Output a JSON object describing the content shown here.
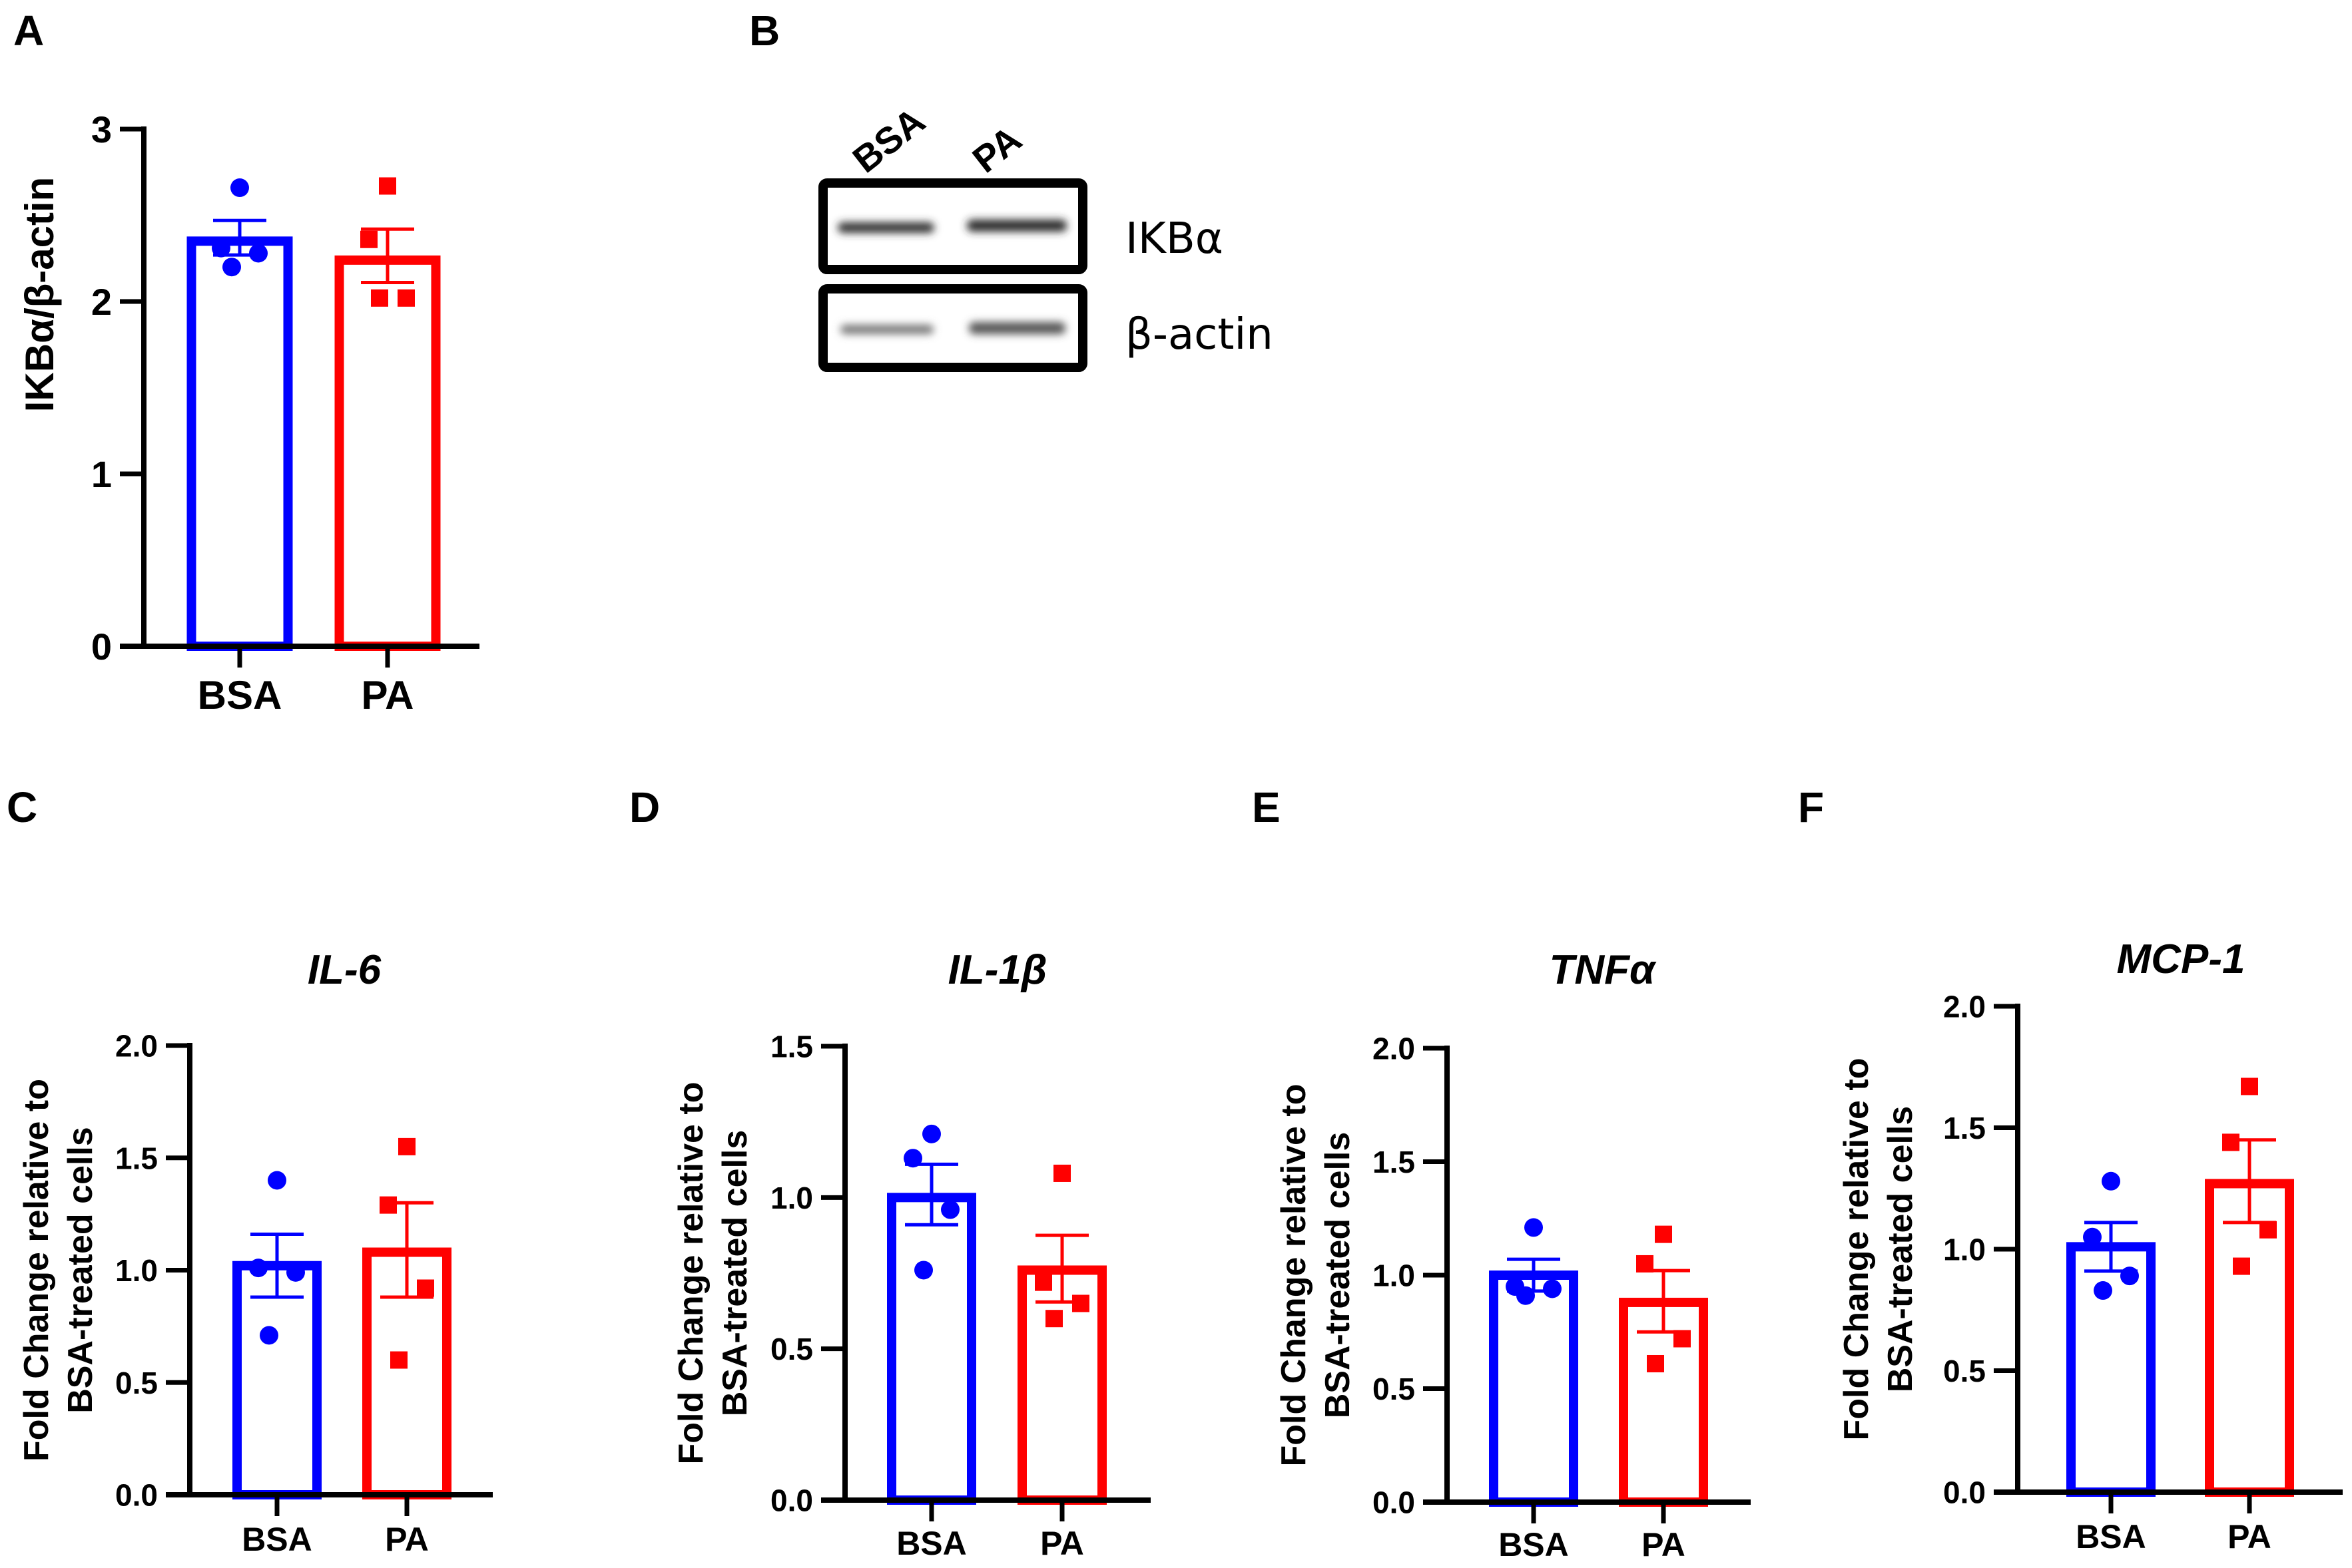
{
  "panel_letters": [
    "A",
    "B",
    "C",
    "D",
    "E",
    "F"
  ],
  "colors": {
    "bsa": "#0000FF",
    "pa": "#FF0000",
    "axis": "#000000"
  },
  "blot": {
    "lanes": [
      "BSA",
      "PA"
    ],
    "bands": [
      "IKBα",
      "β-actin"
    ]
  },
  "chart_data": [
    {
      "panel": "A",
      "type": "bar",
      "title": "",
      "ylabel": "IKBα/β-actin",
      "ylim": [
        0,
        3
      ],
      "yticks": [
        "0",
        "1",
        "2",
        "3"
      ],
      "categories": [
        "BSA",
        "PA"
      ],
      "means": [
        2.35,
        2.24
      ],
      "sem_upper": [
        2.47,
        2.42
      ],
      "sem_lower": [
        2.27,
        2.11
      ],
      "points": [
        [
          2.66,
          2.31,
          2.28,
          2.2
        ],
        [
          2.67,
          2.36,
          2.02,
          2.02
        ]
      ]
    },
    {
      "panel": "C",
      "type": "bar",
      "title": "IL-6",
      "ylabel": [
        "Fold Change relative to",
        "BSA-treated cells"
      ],
      "ylim": [
        0,
        2
      ],
      "yticks": [
        "0.0",
        "0.5",
        "1.0",
        "1.5",
        "2.0"
      ],
      "categories": [
        "BSA",
        "PA"
      ],
      "means": [
        1.02,
        1.08
      ],
      "sem_upper": [
        1.16,
        1.3
      ],
      "sem_lower": [
        0.88,
        0.88
      ],
      "points": [
        [
          1.4,
          1.01,
          0.99,
          0.71
        ],
        [
          1.55,
          1.29,
          0.92,
          0.6
        ]
      ]
    },
    {
      "panel": "D",
      "type": "bar",
      "title": "IL-1β",
      "ylabel": [
        "Fold Change relative to",
        "BSA-treated cells"
      ],
      "ylim": [
        0,
        1.5
      ],
      "yticks": [
        "0.0",
        "0.5",
        "1.0",
        "1.5"
      ],
      "categories": [
        "BSA",
        "PA"
      ],
      "means": [
        1.0,
        0.76
      ],
      "sem_upper": [
        1.11,
        0.875
      ],
      "sem_lower": [
        0.91,
        0.655
      ],
      "points": [
        [
          1.21,
          1.13,
          0.96,
          0.76
        ],
        [
          1.08,
          0.72,
          0.65,
          0.6
        ]
      ]
    },
    {
      "panel": "E",
      "type": "bar",
      "title": "TNFα",
      "ylabel": [
        "Fold Change relative to",
        "BSA-treated cells"
      ],
      "ylim": [
        0,
        2
      ],
      "yticks": [
        "0.0",
        "0.5",
        "1.0",
        "1.5",
        "2.0"
      ],
      "categories": [
        "BSA",
        "PA"
      ],
      "means": [
        1.0,
        0.88
      ],
      "sem_upper": [
        1.07,
        1.02
      ],
      "sem_lower": [
        0.93,
        0.75
      ],
      "points": [
        [
          1.21,
          0.95,
          0.94,
          0.91
        ],
        [
          1.18,
          1.05,
          0.72,
          0.61
        ]
      ]
    },
    {
      "panel": "F",
      "type": "bar",
      "title": "MCP-1",
      "ylabel": [
        "Fold Change relative to",
        "BSA-treated cells"
      ],
      "ylim": [
        0,
        2
      ],
      "yticks": [
        "0.0",
        "0.5",
        "1.0",
        "1.5",
        "2.0"
      ],
      "categories": [
        "BSA",
        "PA"
      ],
      "means": [
        1.01,
        1.27
      ],
      "sem_upper": [
        1.11,
        1.45
      ],
      "sem_lower": [
        0.91,
        1.11
      ],
      "points": [
        [
          1.28,
          1.05,
          0.89,
          0.83
        ],
        [
          1.67,
          1.44,
          1.08,
          0.93
        ]
      ]
    }
  ]
}
